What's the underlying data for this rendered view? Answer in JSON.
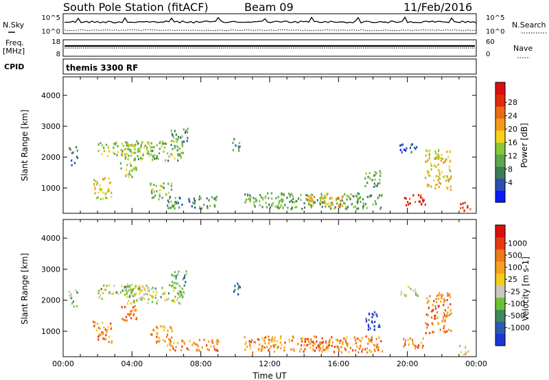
{
  "header": {
    "station": "South Pole Station (fitACF)",
    "beam": "Beam 09",
    "date": "11/Feb/2016"
  },
  "noise_panel": {
    "left_label": "N.Sky",
    "right_label": "N.Search",
    "ticks": [
      "10^5",
      "10^0"
    ]
  },
  "freq_panel": {
    "left_label_1": "Freq.",
    "left_label_2": "[MHz]",
    "left_ticks": [
      "18",
      "8"
    ],
    "right_label": "Nave",
    "right_ticks": [
      "60",
      "0"
    ]
  },
  "cpid_panel": {
    "label": "CPID",
    "text": "themis 3300 RF"
  },
  "chart_data": [
    {
      "type": "heatmap",
      "name": "power",
      "ylabel": "Slant Range [km]",
      "xlabel": "",
      "xlim_hours": [
        0,
        24
      ],
      "ylim": [
        180,
        4600
      ],
      "y_ticks": [
        1000,
        2000,
        3000,
        4000
      ],
      "colorbar": {
        "label": "Power [dB]",
        "ticks": [
          "28",
          "24",
          "20",
          "16",
          "12",
          "8",
          "4"
        ],
        "colors": [
          "#0a1aff",
          "#2c4fb0",
          "#3f7c56",
          "#5ba64e",
          "#88c63c",
          "#f4d21a",
          "#f29a18",
          "#ec6a14",
          "#e22a10",
          "#d81010"
        ]
      },
      "regions": [
        {
          "t0": 0.3,
          "t1": 0.8,
          "r0": 1700,
          "r1": 2300,
          "level": 0.25
        },
        {
          "t0": 1.7,
          "t1": 2.8,
          "r0": 600,
          "r1": 1300,
          "level": 0.55
        },
        {
          "t0": 2.0,
          "t1": 5.2,
          "r0": 2000,
          "r1": 2450,
          "level": 0.45
        },
        {
          "t0": 3.5,
          "t1": 7.0,
          "r0": 1850,
          "r1": 2500,
          "level": 0.4
        },
        {
          "t0": 3.3,
          "t1": 4.3,
          "r0": 1300,
          "r1": 1800,
          "level": 0.45
        },
        {
          "t0": 5.0,
          "t1": 6.3,
          "r0": 600,
          "r1": 1150,
          "level": 0.4
        },
        {
          "t0": 6.0,
          "t1": 9.0,
          "r0": 300,
          "r1": 700,
          "level": 0.3
        },
        {
          "t0": 6.2,
          "t1": 7.2,
          "r0": 2400,
          "r1": 2900,
          "level": 0.3
        },
        {
          "t0": 9.8,
          "t1": 10.3,
          "r0": 2150,
          "r1": 2550,
          "level": 0.3
        },
        {
          "t0": 10.5,
          "t1": 18.5,
          "r0": 280,
          "r1": 800,
          "level": 0.35
        },
        {
          "t0": 14.0,
          "t1": 16.5,
          "r0": 350,
          "r1": 750,
          "level": 0.6
        },
        {
          "t0": 17.5,
          "t1": 18.4,
          "r0": 1000,
          "r1": 1600,
          "level": 0.35
        },
        {
          "t0": 19.7,
          "t1": 21.0,
          "r0": 400,
          "r1": 750,
          "level": 0.9
        },
        {
          "t0": 21.0,
          "t1": 22.5,
          "r0": 900,
          "r1": 2200,
          "level": 0.55
        },
        {
          "t0": 19.5,
          "t1": 20.6,
          "r0": 2100,
          "r1": 2400,
          "level": 0.15
        },
        {
          "t0": 23.0,
          "t1": 23.7,
          "r0": 200,
          "r1": 500,
          "level": 0.8
        }
      ]
    },
    {
      "type": "heatmap",
      "name": "velocity",
      "ylabel": "Slant Range [km]",
      "xlabel": "Time UT",
      "xlim_hours": [
        0,
        24
      ],
      "ylim": [
        180,
        4600
      ],
      "y_ticks": [
        1000,
        2000,
        3000,
        4000
      ],
      "x_tick_labels": [
        "00:00",
        "04:00",
        "08:00",
        "12:00",
        "16:00",
        "20:00",
        "00:00"
      ],
      "colorbar": {
        "label": "Velocity [m s-1]",
        "ticks": [
          "1000",
          "500",
          "100",
          "25",
          "-25",
          "-100",
          "-500",
          "-1000"
        ],
        "colors": [
          "#1a36d6",
          "#2b5ab0",
          "#3d8a5e",
          "#6cc038",
          "#c8c8c0",
          "#f4cc20",
          "#f4a020",
          "#ee7a18",
          "#e83a12",
          "#d81010"
        ]
      },
      "regions": [
        {
          "t0": 0.3,
          "t1": 0.8,
          "r0": 1700,
          "r1": 2300,
          "level": 0.35
        },
        {
          "t0": 1.7,
          "t1": 2.8,
          "r0": 600,
          "r1": 1300,
          "level": 0.7
        },
        {
          "t0": 2.0,
          "t1": 5.2,
          "r0": 2000,
          "r1": 2450,
          "level": 0.42
        },
        {
          "t0": 3.5,
          "t1": 7.0,
          "r0": 1850,
          "r1": 2500,
          "level": 0.42
        },
        {
          "t0": 3.3,
          "t1": 4.3,
          "r0": 1300,
          "r1": 1800,
          "level": 0.75
        },
        {
          "t0": 5.0,
          "t1": 6.3,
          "r0": 600,
          "r1": 1150,
          "level": 0.7
        },
        {
          "t0": 6.0,
          "t1": 9.0,
          "r0": 300,
          "r1": 700,
          "level": 0.7
        },
        {
          "t0": 6.2,
          "t1": 7.2,
          "r0": 2400,
          "r1": 2900,
          "level": 0.3
        },
        {
          "t0": 9.8,
          "t1": 10.3,
          "r0": 2150,
          "r1": 2550,
          "level": 0.15
        },
        {
          "t0": 10.5,
          "t1": 18.5,
          "r0": 280,
          "r1": 800,
          "level": 0.72
        },
        {
          "t0": 14.0,
          "t1": 16.5,
          "r0": 350,
          "r1": 750,
          "level": 0.75
        },
        {
          "t0": 17.5,
          "t1": 18.4,
          "r0": 1000,
          "r1": 1600,
          "level": 0.1
        },
        {
          "t0": 19.7,
          "t1": 21.0,
          "r0": 400,
          "r1": 750,
          "level": 0.72
        },
        {
          "t0": 21.0,
          "t1": 22.5,
          "r0": 900,
          "r1": 2200,
          "level": 0.75
        },
        {
          "t0": 19.5,
          "t1": 20.6,
          "r0": 2100,
          "r1": 2400,
          "level": 0.4
        },
        {
          "t0": 23.0,
          "t1": 23.7,
          "r0": 200,
          "r1": 500,
          "level": 0.55
        }
      ]
    }
  ]
}
